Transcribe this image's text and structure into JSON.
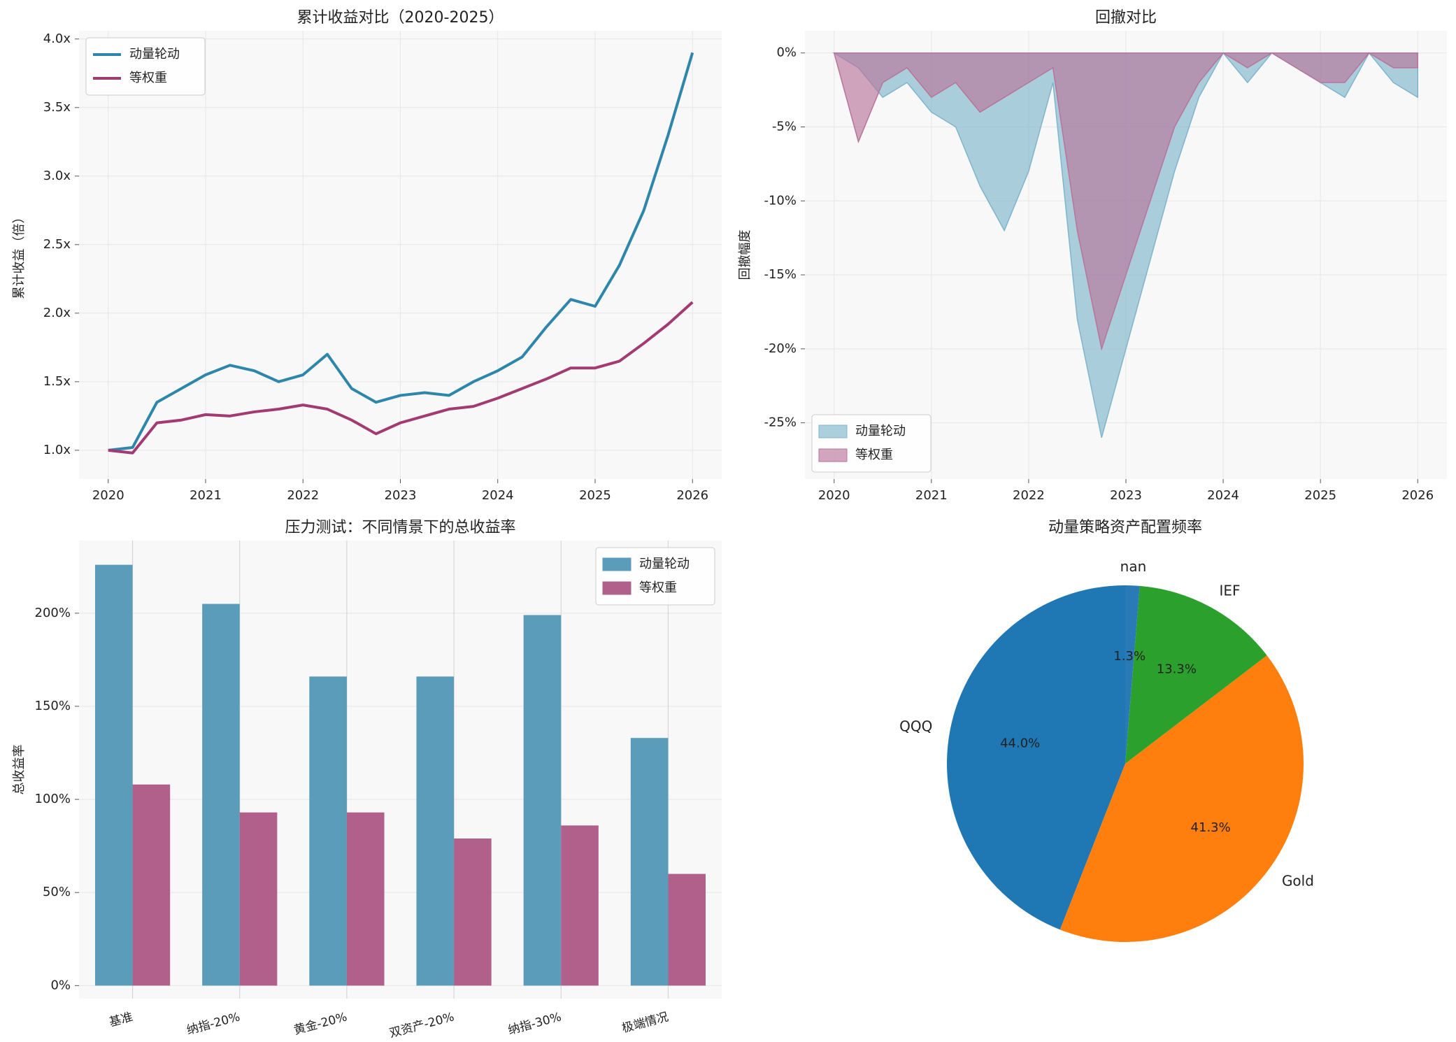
{
  "chart_data": [
    {
      "type": "line",
      "title": "累计收益对比（2020-2025）",
      "y_label": "累计收益（倍）",
      "x": [
        2020.0,
        2020.25,
        2020.5,
        2020.75,
        2021.0,
        2021.25,
        2021.5,
        2021.75,
        2022.0,
        2022.25,
        2022.5,
        2022.75,
        2023.0,
        2023.25,
        2023.5,
        2023.75,
        2024.0,
        2024.25,
        2024.5,
        2024.75,
        2025.0,
        2025.25,
        2025.5,
        2025.75,
        2026.0
      ],
      "series": [
        {
          "name": "动量轮动",
          "color": "#2e86ab",
          "values": [
            1.0,
            1.02,
            1.35,
            1.45,
            1.55,
            1.62,
            1.58,
            1.5,
            1.55,
            1.7,
            1.45,
            1.35,
            1.4,
            1.42,
            1.4,
            1.5,
            1.58,
            1.68,
            1.9,
            2.1,
            2.05,
            2.35,
            2.75,
            3.3,
            3.9
          ]
        },
        {
          "name": "等权重",
          "color": "#a23b72",
          "values": [
            1.0,
            0.98,
            1.2,
            1.22,
            1.26,
            1.25,
            1.28,
            1.3,
            1.33,
            1.3,
            1.22,
            1.12,
            1.2,
            1.25,
            1.3,
            1.32,
            1.38,
            1.45,
            1.52,
            1.6,
            1.6,
            1.65,
            1.78,
            1.92,
            2.08
          ]
        }
      ],
      "xlim": [
        2019.7,
        2026.3
      ],
      "xticks": [
        2020,
        2021,
        2022,
        2023,
        2024,
        2025,
        2026
      ],
      "ylim": [
        0.79,
        4.06
      ],
      "yticks": [
        {
          "value": 1.0,
          "label": "1.0x"
        },
        {
          "value": 1.5,
          "label": "1.5x"
        },
        {
          "value": 2.0,
          "label": "2.0x"
        },
        {
          "value": 2.5,
          "label": "2.5x"
        },
        {
          "value": 3.0,
          "label": "3.0x"
        },
        {
          "value": 3.5,
          "label": "3.5x"
        },
        {
          "value": 4.0,
          "label": "4.0x"
        }
      ],
      "grid": true,
      "legend": "upper left"
    },
    {
      "type": "area",
      "title": "回撤对比",
      "y_label": "回撤幅度",
      "x": [
        2020.0,
        2020.25,
        2020.5,
        2020.75,
        2021.0,
        2021.25,
        2021.5,
        2021.75,
        2022.0,
        2022.25,
        2022.5,
        2022.75,
        2023.0,
        2023.25,
        2023.5,
        2023.75,
        2024.0,
        2024.25,
        2024.5,
        2024.75,
        2025.0,
        2025.25,
        2025.5,
        2025.75,
        2026.0
      ],
      "series": [
        {
          "name": "动量轮动",
          "color": "#7fb5cc",
          "values": [
            0,
            -1,
            -3,
            -2,
            -4,
            -5,
            -9,
            -12,
            -8,
            -2,
            -18,
            -26,
            -20,
            -14,
            -8,
            -3,
            0,
            -2,
            0,
            -1,
            -2,
            -3,
            0,
            -2,
            -3
          ]
        },
        {
          "name": "等权重",
          "color": "#b9749a",
          "values": [
            0,
            -6,
            -2,
            -1,
            -3,
            -2,
            -4,
            -3,
            -2,
            -1,
            -12,
            -20,
            -15,
            -10,
            -5,
            -2,
            0,
            -1,
            0,
            -1,
            -2,
            -2,
            0,
            -1,
            -1
          ]
        }
      ],
      "xlim": [
        2019.7,
        2026.3
      ],
      "xticks": [
        2020,
        2021,
        2022,
        2023,
        2024,
        2025,
        2026
      ],
      "ylim": [
        -28.8,
        1.5
      ],
      "yticks": [
        {
          "value": 0,
          "label": "0%"
        },
        {
          "value": -5,
          "label": "-5%"
        },
        {
          "value": -10,
          "label": "-10%"
        },
        {
          "value": -15,
          "label": "-15%"
        },
        {
          "value": -20,
          "label": "-20%"
        },
        {
          "value": -25,
          "label": "-25%"
        }
      ],
      "grid": true,
      "legend": "lower left"
    },
    {
      "type": "bar",
      "title": "压力测试：不同情景下的总收益率",
      "y_label": "总收益率",
      "categories": [
        "基准",
        "纳指-20%",
        "黄金-20%",
        "双资产-20%",
        "纳指-30%",
        "极端情况"
      ],
      "series": [
        {
          "name": "动量轮动",
          "color": "#5a9cba",
          "values": [
            226,
            205,
            166,
            166,
            199,
            133
          ]
        },
        {
          "name": "等权重",
          "color": "#b0608a",
          "values": [
            108,
            93,
            93,
            79,
            86,
            60
          ]
        }
      ],
      "ylim": [
        -7,
        239
      ],
      "yticks": [
        {
          "value": 0,
          "label": "0%"
        },
        {
          "value": 50,
          "label": "50%"
        },
        {
          "value": 100,
          "label": "100%"
        },
        {
          "value": 150,
          "label": "150%"
        },
        {
          "value": 200,
          "label": "200%"
        }
      ],
      "grid": true,
      "legend": "upper right"
    },
    {
      "type": "pie",
      "title": "动量策略资产配置频率",
      "categories": [
        "QQQ",
        "Gold",
        "IEF",
        "nan"
      ],
      "values": [
        44.0,
        41.3,
        13.3,
        1.3
      ],
      "value_labels": [
        "44.0%",
        "41.3%",
        "13.3%",
        "1.3%"
      ],
      "colors": [
        "#1f77b4",
        "#ff7f0e",
        "#2ca02c",
        "#2a7ab8"
      ]
    }
  ]
}
